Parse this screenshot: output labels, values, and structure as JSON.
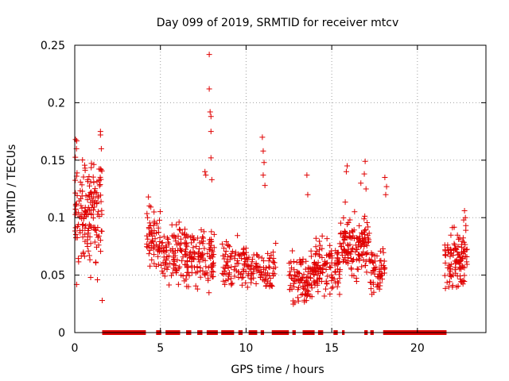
{
  "chart_data": {
    "type": "scatter",
    "title": "Day 099 of 2019, SRMTID for receiver mtcv",
    "xlabel": "GPS time / hours",
    "ylabel": "SRMTID / TECUs",
    "xlim": [
      0,
      24
    ],
    "ylim": [
      0,
      0.25
    ],
    "xticks": [
      0,
      5,
      10,
      15,
      20
    ],
    "xtick_labels": [
      "0",
      "5",
      "10",
      "15",
      "20"
    ],
    "yticks": [
      0,
      0.05,
      0.1,
      0.15,
      0.2,
      0.25
    ],
    "ytick_labels": [
      "0",
      "0.05",
      "0.1",
      "0.15",
      "0.2",
      "0.25"
    ],
    "grid": true,
    "marker": "plus",
    "color": "#e00000",
    "clusters": [
      {
        "x0": 0.0,
        "x1": 1.6,
        "ymin": 0.035,
        "ymax": 0.17,
        "n": 160,
        "seed": 11
      },
      {
        "x0": 4.2,
        "x1": 5.0,
        "ymin": 0.045,
        "ymax": 0.12,
        "n": 60,
        "seed": 12
      },
      {
        "x0": 5.0,
        "x1": 6.6,
        "ymin": 0.035,
        "ymax": 0.105,
        "n": 110,
        "seed": 13
      },
      {
        "x0": 6.6,
        "x1": 8.2,
        "ymin": 0.03,
        "ymax": 0.1,
        "n": 110,
        "seed": 14
      },
      {
        "x0": 8.6,
        "x1": 10.2,
        "ymin": 0.03,
        "ymax": 0.09,
        "n": 90,
        "seed": 15
      },
      {
        "x0": 10.2,
        "x1": 11.8,
        "ymin": 0.025,
        "ymax": 0.085,
        "n": 80,
        "seed": 16
      },
      {
        "x0": 12.5,
        "x1": 14.0,
        "ymin": 0.015,
        "ymax": 0.08,
        "n": 110,
        "seed": 17
      },
      {
        "x0": 14.0,
        "x1": 15.5,
        "ymin": 0.025,
        "ymax": 0.09,
        "n": 110,
        "seed": 18
      },
      {
        "x0": 15.5,
        "x1": 17.2,
        "ymin": 0.035,
        "ymax": 0.12,
        "n": 140,
        "seed": 19
      },
      {
        "x0": 17.2,
        "x1": 18.1,
        "ymin": 0.025,
        "ymax": 0.08,
        "n": 55,
        "seed": 20
      },
      {
        "x0": 21.6,
        "x1": 22.9,
        "ymin": 0.03,
        "ymax": 0.1,
        "n": 110,
        "seed": 21
      }
    ],
    "highlights": [
      {
        "x": 7.85,
        "y": 0.242
      },
      {
        "x": 7.85,
        "y": 0.212
      },
      {
        "x": 7.9,
        "y": 0.192
      },
      {
        "x": 7.95,
        "y": 0.188
      },
      {
        "x": 7.95,
        "y": 0.175
      },
      {
        "x": 7.95,
        "y": 0.152
      },
      {
        "x": 7.6,
        "y": 0.14
      },
      {
        "x": 7.65,
        "y": 0.137
      },
      {
        "x": 8.0,
        "y": 0.133
      },
      {
        "x": 1.5,
        "y": 0.175
      },
      {
        "x": 1.5,
        "y": 0.172
      },
      {
        "x": 1.55,
        "y": 0.16
      },
      {
        "x": 0.05,
        "y": 0.168
      },
      {
        "x": 0.1,
        "y": 0.16
      },
      {
        "x": 0.6,
        "y": 0.143
      },
      {
        "x": 10.95,
        "y": 0.17
      },
      {
        "x": 11.0,
        "y": 0.158
      },
      {
        "x": 11.05,
        "y": 0.148
      },
      {
        "x": 11.0,
        "y": 0.137
      },
      {
        "x": 11.1,
        "y": 0.128
      },
      {
        "x": 13.55,
        "y": 0.137
      },
      {
        "x": 13.6,
        "y": 0.12
      },
      {
        "x": 16.95,
        "y": 0.149
      },
      {
        "x": 15.9,
        "y": 0.145
      },
      {
        "x": 15.85,
        "y": 0.14
      },
      {
        "x": 16.9,
        "y": 0.138
      },
      {
        "x": 16.7,
        "y": 0.13
      },
      {
        "x": 17.0,
        "y": 0.125
      },
      {
        "x": 18.1,
        "y": 0.135
      },
      {
        "x": 18.2,
        "y": 0.127
      },
      {
        "x": 18.15,
        "y": 0.12
      },
      {
        "x": 22.75,
        "y": 0.106
      },
      {
        "x": 22.8,
        "y": 0.1
      },
      {
        "x": 22.7,
        "y": 0.098
      },
      {
        "x": 4.3,
        "y": 0.118
      },
      {
        "x": 1.6,
        "y": 0.028
      }
    ],
    "zero_bar_segments": [
      [
        1.6,
        4.15
      ],
      [
        4.75,
        5.05
      ],
      [
        5.3,
        6.15
      ],
      [
        6.5,
        6.8
      ],
      [
        7.15,
        7.45
      ],
      [
        7.7,
        8.35
      ],
      [
        8.55,
        9.3
      ],
      [
        9.55,
        9.8
      ],
      [
        10.15,
        10.65
      ],
      [
        10.85,
        11.05
      ],
      [
        11.5,
        12.5
      ],
      [
        12.7,
        12.9
      ],
      [
        13.3,
        14.0
      ],
      [
        14.2,
        14.5
      ],
      [
        15.1,
        15.35
      ],
      [
        15.6,
        15.75
      ],
      [
        16.9,
        17.1
      ],
      [
        17.25,
        17.45
      ],
      [
        18.0,
        21.7
      ]
    ]
  }
}
